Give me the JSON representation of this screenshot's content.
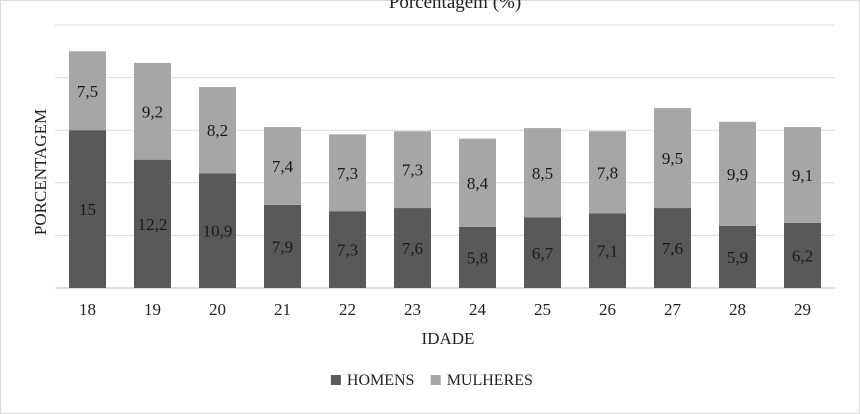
{
  "chart_data": {
    "type": "bar",
    "stacked": true,
    "title": "Porcentagem (%)",
    "xlabel": "IDADE",
    "ylabel": "PORCENTAGEM",
    "categories": [
      "18",
      "19",
      "20",
      "21",
      "22",
      "23",
      "24",
      "25",
      "26",
      "27",
      "28",
      "29"
    ],
    "series": [
      {
        "name": "HOMENS",
        "color": "#595959",
        "values": [
          15,
          12.2,
          10.9,
          7.9,
          7.3,
          7.6,
          5.8,
          6.7,
          7.1,
          7.6,
          5.9,
          6.2
        ],
        "labels": [
          "15",
          "12,2",
          "10,9",
          "7,9",
          "7,3",
          "7,6",
          "5,8",
          "6,7",
          "7,1",
          "7,6",
          "5,9",
          "6,2"
        ]
      },
      {
        "name": "MULHERES",
        "color": "#a6a6a6",
        "values": [
          7.5,
          9.2,
          8.2,
          7.4,
          7.3,
          7.3,
          8.4,
          8.5,
          7.8,
          9.5,
          9.9,
          9.1
        ],
        "labels": [
          "7,5",
          "9,2",
          "8,2",
          "7,4",
          "7,3",
          "7,3",
          "8,4",
          "8,5",
          "7,8",
          "9,5",
          "9,9",
          "9,1"
        ]
      }
    ],
    "ylim": [
      0,
      25
    ],
    "grid": true,
    "legend": "bottom"
  }
}
